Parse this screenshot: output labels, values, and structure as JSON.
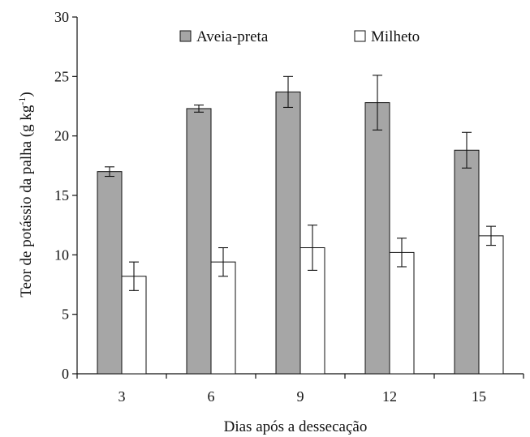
{
  "chart_data": {
    "type": "bar",
    "title": "",
    "xlabel": "Dias após a dessecação",
    "ylabel": "Teor de potássio da palha (g kg-1)",
    "ylabel_parts": {
      "main": "Teor de potássio da palha (g kg",
      "sup": "-1",
      "close": ")"
    },
    "ylim": [
      0,
      30
    ],
    "yticks": [
      0,
      5,
      10,
      15,
      20,
      25,
      30
    ],
    "categories": [
      "3",
      "6",
      "9",
      "12",
      "15"
    ],
    "legend_position": "top",
    "grid": false,
    "series": [
      {
        "name": "Aveia-preta",
        "color": "#a6a6a6",
        "values": [
          17.0,
          22.3,
          23.7,
          22.8,
          18.8
        ],
        "error": [
          0.4,
          0.3,
          1.3,
          2.3,
          1.5
        ]
      },
      {
        "name": "Milheto",
        "color": "#ffffff",
        "values": [
          8.2,
          9.4,
          10.6,
          10.2,
          11.6
        ],
        "error": [
          1.2,
          1.2,
          1.9,
          1.2,
          0.8
        ]
      }
    ]
  }
}
